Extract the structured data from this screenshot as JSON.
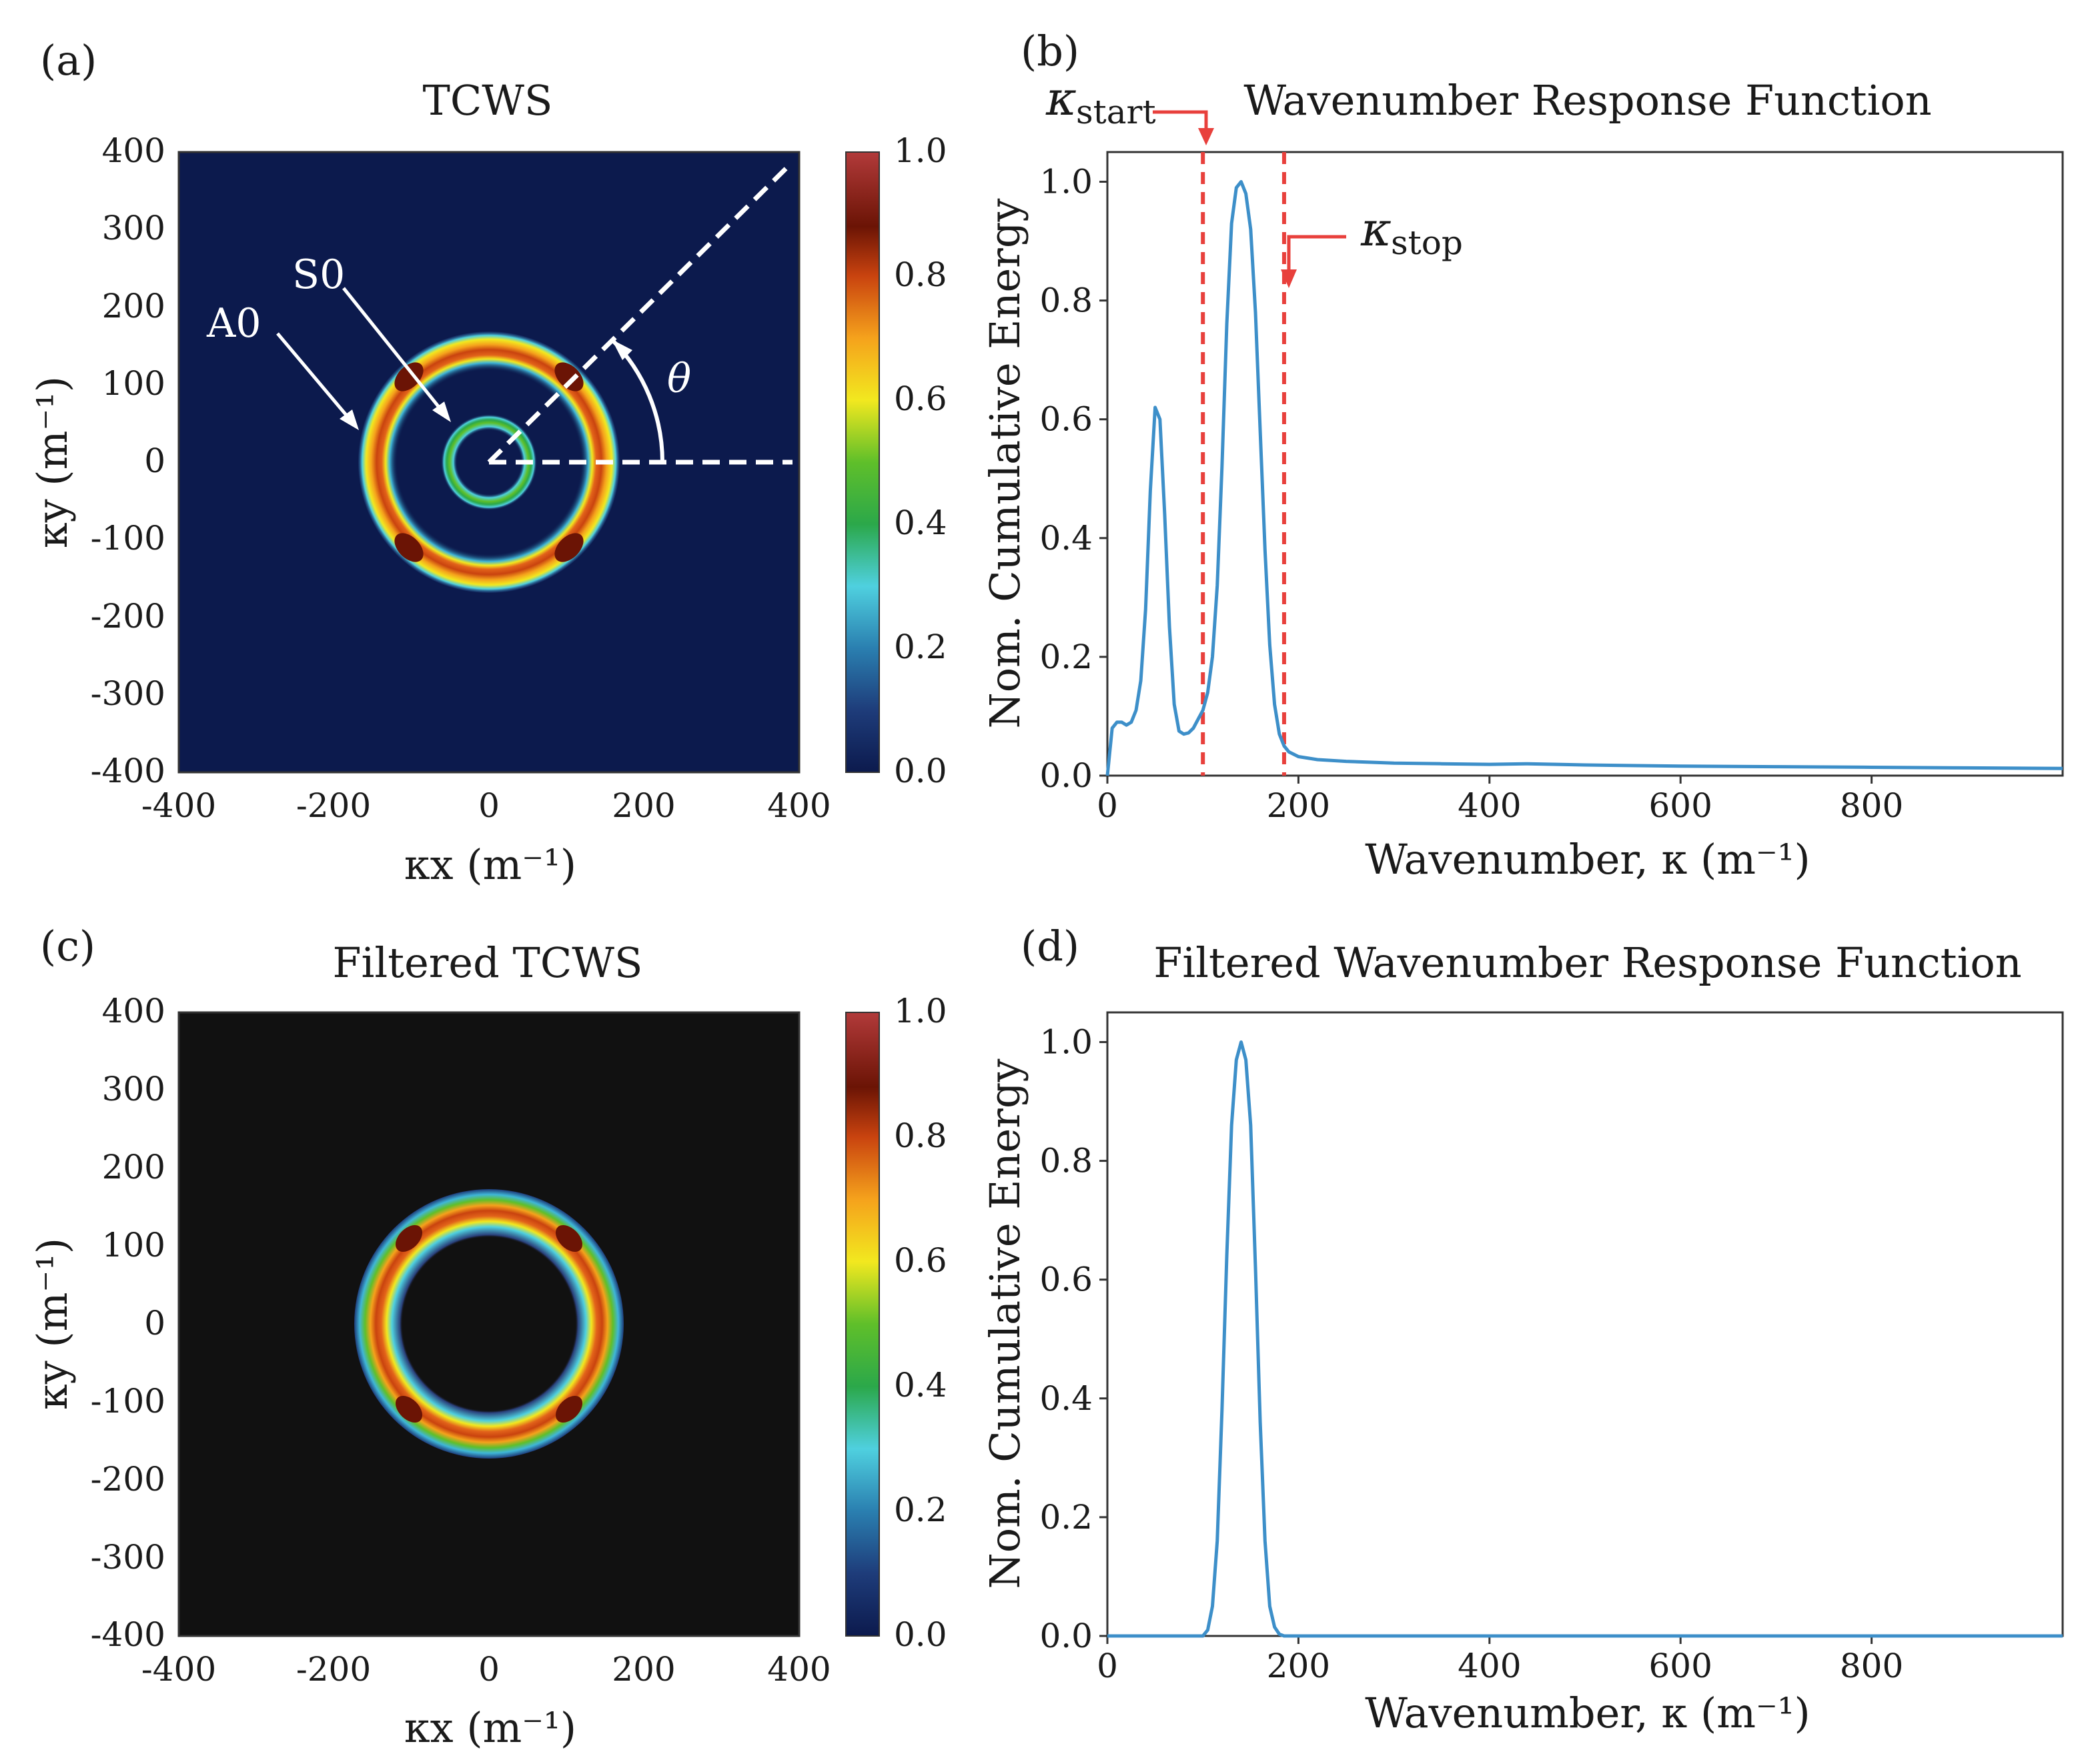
{
  "colors": {
    "series": "#3d8fc9",
    "marker_line": "#e8403c",
    "annotation": "#ffffff",
    "heatmap_bg_a": "#0c1a4d",
    "heatmap_bg_c": "#111111"
  },
  "chart_data": [
    {
      "id": "a",
      "panel_letter": "(a)",
      "type": "heatmap",
      "title": "TCWS",
      "xlabel": "κx (m⁻¹)",
      "ylabel": "κy (m⁻¹)",
      "xlim": [
        -400,
        400
      ],
      "ylim": [
        -400,
        400
      ],
      "xticks": [
        "-400",
        "-200",
        "0",
        "200",
        "400"
      ],
      "yticks": [
        "400",
        "300",
        "200",
        "100",
        "0",
        "-100",
        "-200",
        "-300",
        "-400"
      ],
      "colorbar": {
        "range": [
          0.0,
          1.0
        ],
        "ticks": [
          "1.0",
          "0.8",
          "0.6",
          "0.4",
          "0.2",
          "0.0"
        ],
        "colormap": "jet-like"
      },
      "rings": [
        {
          "mode": "A0",
          "radius": 145,
          "peak": 1.0
        },
        {
          "mode": "S0",
          "radius": 52,
          "peak": 0.55
        }
      ],
      "annotations": [
        {
          "label": "S0",
          "target_mode": "S0"
        },
        {
          "label": "A0",
          "target_mode": "A0"
        },
        {
          "label": "θ",
          "type": "angle",
          "degrees": 45
        }
      ]
    },
    {
      "id": "b",
      "panel_letter": "(b)",
      "type": "line",
      "title": "Wavenumber Response Function",
      "xlabel": "Wavenumber, κ (m⁻¹)",
      "ylabel": "Nom. Cumulative Energy",
      "xlim": [
        0,
        1000
      ],
      "ylim": [
        0,
        1.05
      ],
      "xticks": [
        "0",
        "200",
        "400",
        "600",
        "800"
      ],
      "yticks": [
        "0.0",
        "0.2",
        "0.4",
        "0.6",
        "0.8",
        "1.0"
      ],
      "series": [
        {
          "x": [
            0,
            5,
            10,
            15,
            20,
            25,
            30,
            35,
            40,
            45,
            50,
            55,
            60,
            65,
            70,
            75,
            80,
            85,
            90,
            95,
            100,
            105,
            110,
            115,
            120,
            125,
            130,
            135,
            140,
            145,
            150,
            155,
            160,
            165,
            170,
            175,
            180,
            185,
            190,
            200,
            220,
            250,
            300,
            350,
            400,
            440,
            500,
            600,
            700,
            800,
            900,
            1000
          ],
          "y": [
            0.0,
            0.08,
            0.09,
            0.09,
            0.085,
            0.09,
            0.11,
            0.16,
            0.28,
            0.48,
            0.62,
            0.6,
            0.44,
            0.25,
            0.12,
            0.075,
            0.07,
            0.072,
            0.08,
            0.095,
            0.11,
            0.14,
            0.2,
            0.32,
            0.52,
            0.76,
            0.93,
            0.99,
            1.0,
            0.98,
            0.92,
            0.78,
            0.58,
            0.38,
            0.22,
            0.12,
            0.07,
            0.05,
            0.04,
            0.032,
            0.027,
            0.024,
            0.021,
            0.02,
            0.019,
            0.02,
            0.018,
            0.016,
            0.015,
            0.014,
            0.013,
            0.012
          ]
        }
      ],
      "markers": [
        {
          "label_main": "κ",
          "label_sub": "start",
          "x": 100
        },
        {
          "label_main": "κ",
          "label_sub": "stop",
          "x": 185
        }
      ]
    },
    {
      "id": "c",
      "panel_letter": "(c)",
      "type": "heatmap",
      "title": "Filtered TCWS",
      "xlabel": "κx (m⁻¹)",
      "ylabel": "κy (m⁻¹)",
      "xlim": [
        -400,
        400
      ],
      "ylim": [
        -400,
        400
      ],
      "xticks": [
        "-400",
        "-200",
        "0",
        "200",
        "400"
      ],
      "yticks": [
        "400",
        "300",
        "200",
        "100",
        "0",
        "-100",
        "-200",
        "-300",
        "-400"
      ],
      "colorbar": {
        "range": [
          0.0,
          1.0
        ],
        "ticks": [
          "1.0",
          "0.8",
          "0.6",
          "0.4",
          "0.2",
          "0.0"
        ],
        "colormap": "jet-like"
      },
      "rings": [
        {
          "mode": "A0",
          "radius": 145,
          "peak": 1.0
        }
      ],
      "annotations": []
    },
    {
      "id": "d",
      "panel_letter": "(d)",
      "type": "line",
      "title": "Filtered Wavenumber Response Function",
      "xlabel": "Wavenumber, κ (m⁻¹)",
      "ylabel": "Nom. Cumulative Energy",
      "xlim": [
        0,
        1000
      ],
      "ylim": [
        0,
        1.05
      ],
      "xticks": [
        "0",
        "200",
        "400",
        "600",
        "800"
      ],
      "yticks": [
        "0.0",
        "0.2",
        "0.4",
        "0.6",
        "0.8",
        "1.0"
      ],
      "series": [
        {
          "x": [
            0,
            50,
            100,
            105,
            110,
            115,
            120,
            125,
            130,
            135,
            140,
            145,
            150,
            155,
            160,
            165,
            170,
            175,
            180,
            185,
            200,
            400,
            600,
            800,
            1000
          ],
          "y": [
            0.0,
            0.0,
            0.0,
            0.01,
            0.05,
            0.16,
            0.38,
            0.64,
            0.86,
            0.97,
            1.0,
            0.97,
            0.86,
            0.62,
            0.36,
            0.16,
            0.05,
            0.015,
            0.003,
            0.0,
            0.0,
            0.0,
            0.0,
            0.0,
            0.0
          ]
        }
      ],
      "markers": []
    }
  ]
}
